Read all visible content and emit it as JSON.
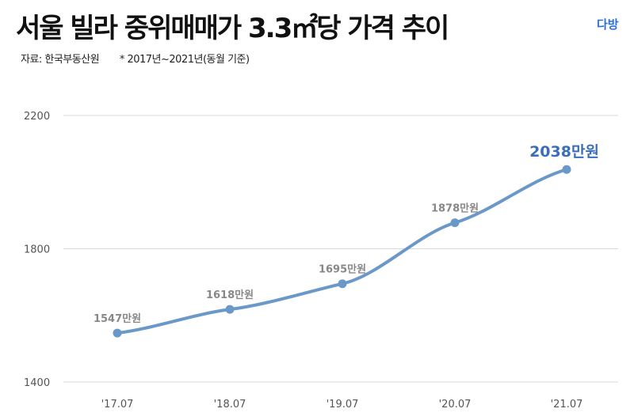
{
  "header": {
    "title": "서울 빌라 중위매매가 3.3㎡당 가격 추이",
    "source": "자료: 한국부동산원",
    "note": "* 2017년~2021년(동월 기준)",
    "logo": "다방"
  },
  "colors": {
    "line": "#6a98c8",
    "label": "#888888",
    "highlight": "#3a6fb8",
    "grid": "#d9d9d9"
  },
  "chart_data": {
    "type": "line",
    "title": "서울 빌라 중위매매가 3.3㎡당 가격 추이",
    "categories": [
      "'17.07",
      "'18.07",
      "'19.07",
      "'20.07",
      "'21.07"
    ],
    "series": [
      {
        "name": "중위매매가",
        "values": [
          1547,
          1618,
          1695,
          1878,
          2038
        ]
      }
    ],
    "data_labels": [
      "1547만원",
      "1618만원",
      "1695만원",
      "1878만원",
      "2038만원"
    ],
    "yticks": [
      1400,
      1800,
      2200
    ],
    "ylim": [
      1400,
      2200
    ],
    "grid": true,
    "xlabel": "",
    "ylabel": ""
  }
}
